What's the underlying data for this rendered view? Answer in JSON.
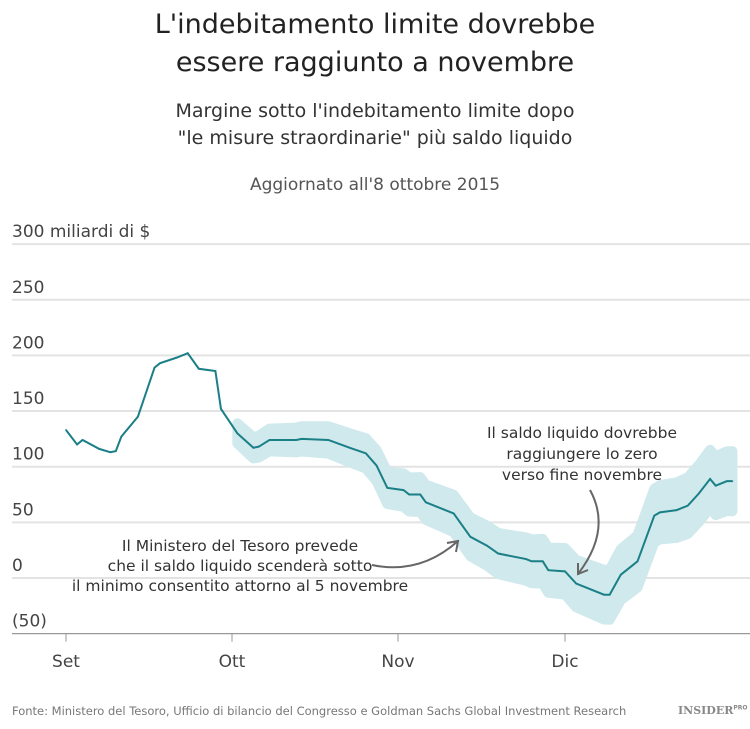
{
  "chart_data": {
    "type": "line",
    "title": "L'indebitamento limite dovrebbe essere raggiunto a novembre",
    "subtitle": "Margine sotto l'indebitamento limite dopo \"le misure straordinarie\" più saldo liquido",
    "updated": "Aggiornato all'8 ottobre 2015",
    "ylim": [
      -50,
      300
    ],
    "yticks": [
      {
        "v": 300,
        "label": "300 miliardi di $"
      },
      {
        "v": 250,
        "label": "250"
      },
      {
        "v": 200,
        "label": "200"
      },
      {
        "v": 150,
        "label": "150"
      },
      {
        "v": 100,
        "label": "100"
      },
      {
        "v": 50,
        "label": "50"
      },
      {
        "v": 0,
        "label": "0"
      },
      {
        "v": -50,
        "label": "(50)"
      }
    ],
    "xticks": [
      {
        "date": "09-01",
        "label": "Set"
      },
      {
        "date": "10-01",
        "label": "Ott"
      },
      {
        "date": "11-01",
        "label": "Nov"
      },
      {
        "date": "12-01",
        "label": "Dic"
      }
    ],
    "grid": true,
    "colors": {
      "line": "#1a7f86",
      "band": "#cfe9ec",
      "grid": "#e3e3e3",
      "arrow": "#666666"
    },
    "band_start": "10-01",
    "points": [
      [
        "09-01",
        133
      ],
      [
        "09-03",
        120
      ],
      [
        "09-04",
        124
      ],
      [
        "09-07",
        116
      ],
      [
        "09-09",
        113
      ],
      [
        "09-10",
        114
      ],
      [
        "09-11",
        127
      ],
      [
        "09-14",
        145
      ],
      [
        "09-17",
        189
      ],
      [
        "09-18",
        193
      ],
      [
        "09-21",
        198
      ],
      [
        "09-23",
        202
      ],
      [
        "09-25",
        188
      ],
      [
        "09-28",
        186
      ],
      [
        "09-29",
        152
      ],
      [
        "10-02",
        130
      ],
      [
        "10-05",
        117
      ],
      [
        "10-06",
        118
      ],
      [
        "10-07",
        121
      ],
      [
        "10-08",
        124
      ],
      [
        "10-09",
        124
      ],
      [
        "10-13",
        124
      ],
      [
        "10-14",
        125
      ],
      [
        "10-19",
        124
      ],
      [
        "10-23",
        117
      ],
      [
        "10-26",
        112
      ],
      [
        "10-28",
        101
      ],
      [
        "10-29",
        91
      ],
      [
        "10-30",
        81
      ],
      [
        "11-02",
        79
      ],
      [
        "11-03",
        75
      ],
      [
        "11-05",
        75
      ],
      [
        "11-06",
        68
      ],
      [
        "11-11",
        58
      ],
      [
        "11-14",
        37
      ],
      [
        "11-17",
        29
      ],
      [
        "11-19",
        22
      ],
      [
        "11-24",
        17
      ],
      [
        "11-25",
        15
      ],
      [
        "11-27",
        15
      ],
      [
        "11-28",
        7
      ],
      [
        "12-01",
        6
      ],
      [
        "12-03",
        -5
      ],
      [
        "12-08",
        -15
      ],
      [
        "12-09",
        -15
      ],
      [
        "12-11",
        3
      ],
      [
        "12-14",
        15
      ],
      [
        "12-17",
        56
      ],
      [
        "12-18",
        59
      ],
      [
        "12-21",
        61
      ],
      [
        "12-23",
        65
      ],
      [
        "12-25",
        76
      ],
      [
        "12-27",
        89
      ],
      [
        "12-28",
        83
      ],
      [
        "12-30",
        87
      ],
      [
        "12-31",
        87
      ]
    ],
    "annotations": [
      {
        "lines": [
          "Il Ministero del Tesoro prevede",
          "che il saldo liquido scenderà sotto",
          "il minimo consentito attorno al 5 novembre"
        ]
      },
      {
        "lines": [
          "Il saldo liquido dovrebbe",
          "raggiungere lo zero",
          "verso fine novembre"
        ]
      }
    ]
  },
  "footer": {
    "source": "Fonte: Ministero del Tesoro, Ufficio di bilancio del Congresso e Goldman Sachs Global Investment Research",
    "logo": "INSIDER",
    "logo_sup": "PRO"
  }
}
